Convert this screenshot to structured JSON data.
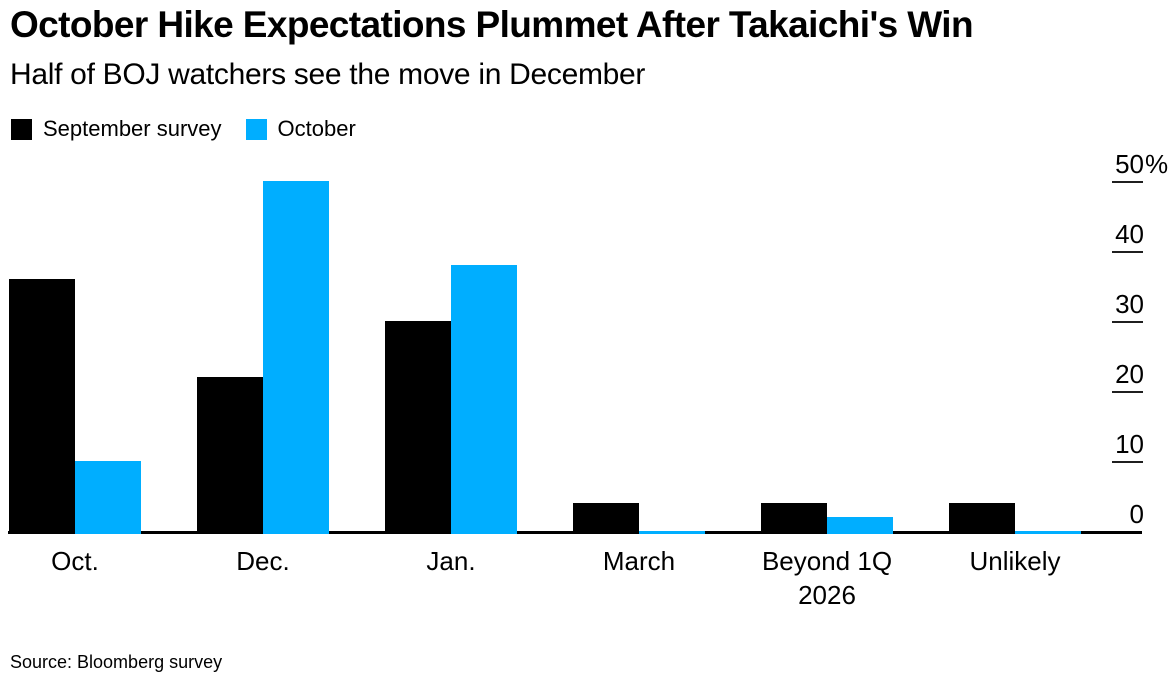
{
  "header": {
    "title": "October Hike Expectations Plummet After Takaichi's Win",
    "subtitle": "Half of BOJ watchers see the move in December"
  },
  "chart_data": {
    "type": "bar",
    "title": "October Hike Expectations Plummet After Takaichi's Win",
    "subtitle": "Half of BOJ watchers see the move in December",
    "categories": [
      "Oct.",
      "Dec.",
      "Jan.",
      "March",
      "Beyond 1Q 2026",
      "Unlikely"
    ],
    "series": [
      {
        "name": "September survey",
        "color": "#000000",
        "values": [
          36,
          22,
          30,
          4,
          4,
          4
        ]
      },
      {
        "name": "October",
        "color": "#00AEFF",
        "values": [
          10,
          50,
          38,
          0,
          2,
          0
        ]
      }
    ],
    "unit": "%",
    "ylim": [
      0,
      50
    ],
    "yticks": [
      {
        "v": 0,
        "label": "0"
      },
      {
        "v": 10,
        "label": "10"
      },
      {
        "v": 20,
        "label": "20"
      },
      {
        "v": 30,
        "label": "30"
      },
      {
        "v": 40,
        "label": "40"
      },
      {
        "v": 50,
        "label": "50",
        "suffix": "%"
      }
    ],
    "grid": false,
    "axis_side": "right",
    "legend_position": "top-left"
  },
  "footer": {
    "source": "Source: Bloomberg survey"
  }
}
